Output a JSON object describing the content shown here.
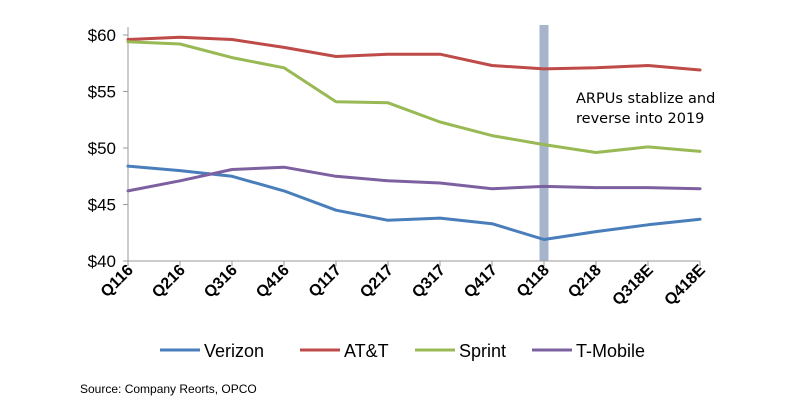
{
  "chart_data": {
    "type": "line",
    "categories": [
      "Q116",
      "Q216",
      "Q316",
      "Q416",
      "Q117",
      "Q217",
      "Q317",
      "Q417",
      "Q118",
      "Q218",
      "Q318E",
      "Q418E"
    ],
    "y_tick_labels": [
      "$40",
      "$45",
      "$50",
      "$55",
      "$60"
    ],
    "ylim": [
      40,
      60
    ],
    "grid": false,
    "legend_position": "bottom",
    "series": [
      {
        "name": "Verizon",
        "color": "#4a7ebb",
        "values": [
          48.4,
          48.0,
          47.5,
          46.2,
          44.5,
          43.6,
          43.8,
          43.3,
          41.9,
          42.6,
          43.2,
          43.7
        ]
      },
      {
        "name": "AT&T",
        "color": "#be4b48",
        "values": [
          59.6,
          59.8,
          59.6,
          58.9,
          58.1,
          58.3,
          58.3,
          57.3,
          57.0,
          57.1,
          57.3,
          56.9
        ]
      },
      {
        "name": "Sprint",
        "color": "#98b954",
        "values": [
          59.4,
          59.2,
          58.0,
          57.1,
          54.1,
          54.0,
          52.3,
          51.1,
          50.3,
          49.6,
          50.1,
          49.7
        ]
      },
      {
        "name": "T-Mobile",
        "color": "#7d60a0",
        "values": [
          46.2,
          47.1,
          48.1,
          48.3,
          47.5,
          47.1,
          46.9,
          46.4,
          46.6,
          46.5,
          46.5,
          46.4
        ]
      }
    ],
    "highlight": {
      "category": "Q118",
      "color": "#a6b4cc"
    },
    "annotation": {
      "lines": [
        "ARPUs stablize and",
        "reverse into 2019"
      ]
    }
  },
  "source": "Source: Company Reorts, OPCO"
}
